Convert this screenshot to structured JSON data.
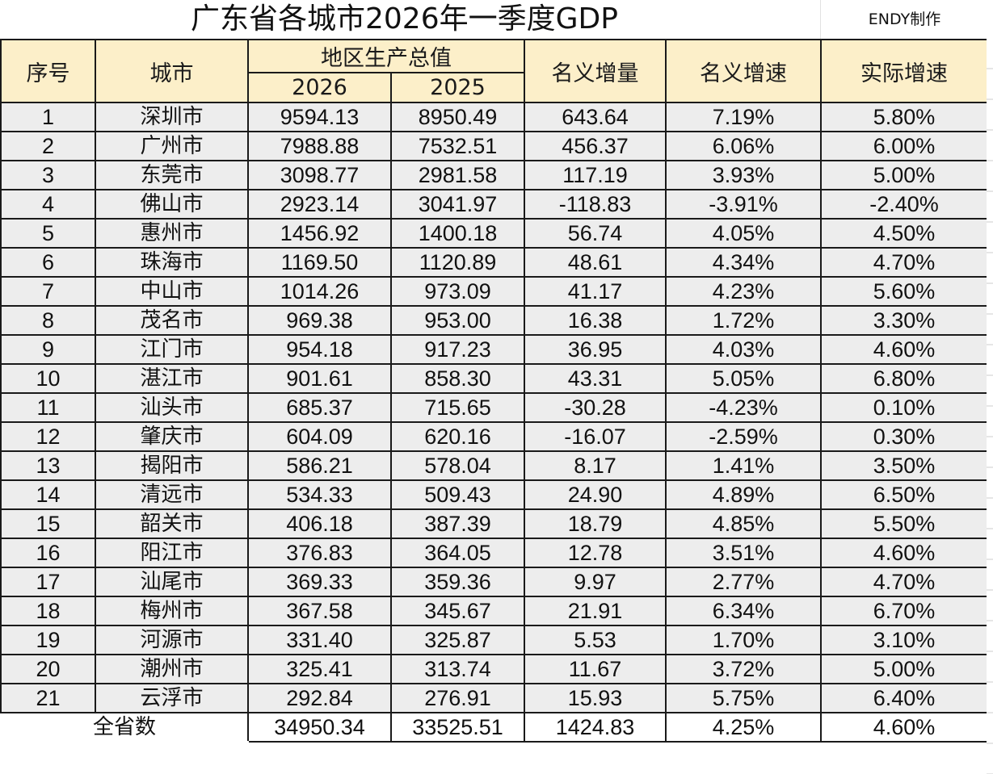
{
  "header": {
    "title": "广东省各城市2026年一季度GDP",
    "credit": "ENDY制作"
  },
  "columns": {
    "index": "序号",
    "city": "城市",
    "gdp_group": "地区生产总值",
    "gdp_2026": "2026",
    "gdp_2025": "2025",
    "nominal_increase": "名义增量",
    "nominal_growth": "名义增速",
    "real_growth": "实际增速"
  },
  "rows": [
    {
      "index": "1",
      "city": "深圳市",
      "gdp_2026": "9594.13",
      "gdp_2025": "8950.49",
      "nominal_increase": "643.64",
      "nominal_growth": "7.19%",
      "real_growth": "5.80%"
    },
    {
      "index": "2",
      "city": "广州市",
      "gdp_2026": "7988.88",
      "gdp_2025": "7532.51",
      "nominal_increase": "456.37",
      "nominal_growth": "6.06%",
      "real_growth": "6.00%"
    },
    {
      "index": "3",
      "city": "东莞市",
      "gdp_2026": "3098.77",
      "gdp_2025": "2981.58",
      "nominal_increase": "117.19",
      "nominal_growth": "3.93%",
      "real_growth": "5.00%"
    },
    {
      "index": "4",
      "city": "佛山市",
      "gdp_2026": "2923.14",
      "gdp_2025": "3041.97",
      "nominal_increase": "-118.83",
      "nominal_growth": "-3.91%",
      "real_growth": "-2.40%"
    },
    {
      "index": "5",
      "city": "惠州市",
      "gdp_2026": "1456.92",
      "gdp_2025": "1400.18",
      "nominal_increase": "56.74",
      "nominal_growth": "4.05%",
      "real_growth": "4.50%"
    },
    {
      "index": "6",
      "city": "珠海市",
      "gdp_2026": "1169.50",
      "gdp_2025": "1120.89",
      "nominal_increase": "48.61",
      "nominal_growth": "4.34%",
      "real_growth": "4.70%"
    },
    {
      "index": "7",
      "city": "中山市",
      "gdp_2026": "1014.26",
      "gdp_2025": "973.09",
      "nominal_increase": "41.17",
      "nominal_growth": "4.23%",
      "real_growth": "5.60%"
    },
    {
      "index": "8",
      "city": "茂名市",
      "gdp_2026": "969.38",
      "gdp_2025": "953.00",
      "nominal_increase": "16.38",
      "nominal_growth": "1.72%",
      "real_growth": "3.30%"
    },
    {
      "index": "9",
      "city": "江门市",
      "gdp_2026": "954.18",
      "gdp_2025": "917.23",
      "nominal_increase": "36.95",
      "nominal_growth": "4.03%",
      "real_growth": "4.60%"
    },
    {
      "index": "10",
      "city": "湛江市",
      "gdp_2026": "901.61",
      "gdp_2025": "858.30",
      "nominal_increase": "43.31",
      "nominal_growth": "5.05%",
      "real_growth": "6.80%"
    },
    {
      "index": "11",
      "city": "汕头市",
      "gdp_2026": "685.37",
      "gdp_2025": "715.65",
      "nominal_increase": "-30.28",
      "nominal_growth": "-4.23%",
      "real_growth": "0.10%"
    },
    {
      "index": "12",
      "city": "肇庆市",
      "gdp_2026": "604.09",
      "gdp_2025": "620.16",
      "nominal_increase": "-16.07",
      "nominal_growth": "-2.59%",
      "real_growth": "0.30%"
    },
    {
      "index": "13",
      "city": "揭阳市",
      "gdp_2026": "586.21",
      "gdp_2025": "578.04",
      "nominal_increase": "8.17",
      "nominal_growth": "1.41%",
      "real_growth": "3.50%"
    },
    {
      "index": "14",
      "city": "清远市",
      "gdp_2026": "534.33",
      "gdp_2025": "509.43",
      "nominal_increase": "24.90",
      "nominal_growth": "4.89%",
      "real_growth": "6.50%"
    },
    {
      "index": "15",
      "city": "韶关市",
      "gdp_2026": "406.18",
      "gdp_2025": "387.39",
      "nominal_increase": "18.79",
      "nominal_growth": "4.85%",
      "real_growth": "5.50%"
    },
    {
      "index": "16",
      "city": "阳江市",
      "gdp_2026": "376.83",
      "gdp_2025": "364.05",
      "nominal_increase": "12.78",
      "nominal_growth": "3.51%",
      "real_growth": "4.60%"
    },
    {
      "index": "17",
      "city": "汕尾市",
      "gdp_2026": "369.33",
      "gdp_2025": "359.36",
      "nominal_increase": "9.97",
      "nominal_growth": "2.77%",
      "real_growth": "4.70%"
    },
    {
      "index": "18",
      "city": "梅州市",
      "gdp_2026": "367.58",
      "gdp_2025": "345.67",
      "nominal_increase": "21.91",
      "nominal_growth": "6.34%",
      "real_growth": "6.70%"
    },
    {
      "index": "19",
      "city": "河源市",
      "gdp_2026": "331.40",
      "gdp_2025": "325.87",
      "nominal_increase": "5.53",
      "nominal_growth": "1.70%",
      "real_growth": "3.10%"
    },
    {
      "index": "20",
      "city": "潮州市",
      "gdp_2026": "325.41",
      "gdp_2025": "313.74",
      "nominal_increase": "11.67",
      "nominal_growth": "3.72%",
      "real_growth": "5.00%"
    },
    {
      "index": "21",
      "city": "云浮市",
      "gdp_2026": "292.84",
      "gdp_2025": "276.91",
      "nominal_increase": "15.93",
      "nominal_growth": "5.75%",
      "real_growth": "6.40%"
    }
  ],
  "total": {
    "label": "全省数",
    "gdp_2026": "34950.34",
    "gdp_2025": "33525.51",
    "nominal_increase": "1424.83",
    "nominal_growth": "4.25%",
    "real_growth": "4.60%"
  },
  "colors": {
    "header_bg": "#fcefc9",
    "row_bg": "#ededed",
    "border": "#1a1a1a"
  }
}
